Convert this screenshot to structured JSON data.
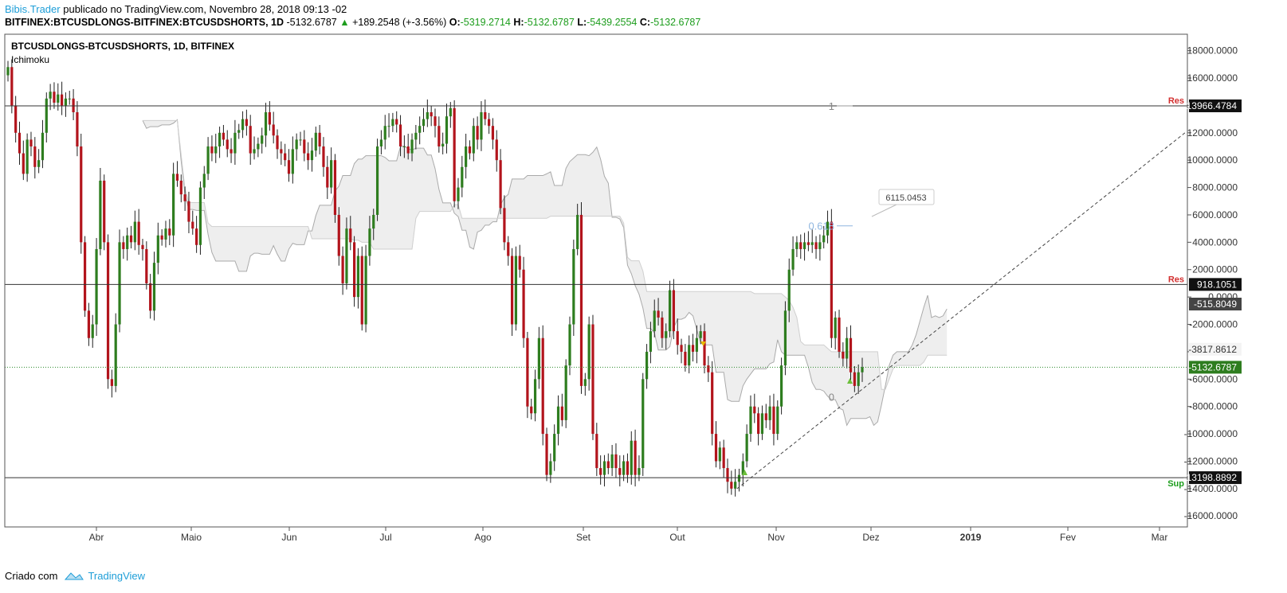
{
  "header": {
    "author": "Bibis.Trader",
    "published_text": "publicado no TradingView.com, Novembro 28, 2018 09:13 -02",
    "symbol": "BITFINEX:BTCUSDLONGS-BITFINEX:BTCUSDSHORTS, 1D",
    "last": "-5132.6787",
    "change": "+189.2548 (+-3.56%)",
    "o_label": "O:",
    "o_value": "-5319.2714",
    "h_label": "H:",
    "h_value": "-5132.6787",
    "l_label": "L:",
    "l_value": "-5439.2554",
    "c_label": "C:",
    "c_value": "-5132.6787"
  },
  "legend": {
    "symbol": "BTCUSDLONGS-BTCUSDSHORTS, 1D, BITFINEX",
    "indicator": "Ichimoku"
  },
  "footer": {
    "created_with": "Criado com",
    "brand": "TradingView"
  },
  "colors": {
    "up": "#2e7d1f",
    "down": "#b2141c",
    "cloud": "#eeeeee",
    "fib": "#8fb6e0",
    "res": "#d32f2f",
    "sup": "#1d9d1d"
  },
  "chart_data": {
    "type": "candlestick",
    "ylim": [
      -16800,
      19200
    ],
    "y_ticks": [
      "18000.0000",
      "16000.0000",
      "14000.0000",
      "12000.0000",
      "10000.0000",
      "8000.0000",
      "6000.0000",
      "4000.0000",
      "2000.0000",
      "0.0000",
      "-2000.0000",
      "-4000.0000",
      "-6000.0000",
      "-8000.0000",
      "-10000.0000",
      "-12000.0000",
      "-14000.0000",
      "-16000.0000"
    ],
    "x_ticks": [
      "Abr",
      "Maio",
      "Jun",
      "Jul",
      "Ago",
      "Set",
      "Out",
      "Nov",
      "Dez",
      "2019",
      "Fev",
      "Mar"
    ],
    "levels": [
      {
        "value": 13966.4784,
        "label": "Res",
        "price_label": "13966.4784"
      },
      {
        "value": 918.1051,
        "label": "Res",
        "price_label": "918.1051"
      },
      {
        "value": -13198.8892,
        "label": "Sup",
        "price_label": "-13198.8892"
      }
    ],
    "price_tags": [
      {
        "value": -515.8049,
        "label": "-515.8049"
      },
      {
        "value": -3817.8612,
        "label": "-3817.8612"
      },
      {
        "value": -5132.6787,
        "label": "-5132.6787"
      }
    ],
    "current_price": -5132.6787,
    "fib_labels": [
      {
        "value": 13966,
        "label": "1"
      },
      {
        "value": 5200,
        "label": "0.618"
      },
      {
        "value": -7300,
        "label": "0"
      }
    ],
    "annotation": {
      "label": "6115.0453"
    },
    "closes": [
      16800,
      14000,
      12000,
      10500,
      9000,
      11500,
      11000,
      9500,
      10000,
      12000,
      14500,
      15000,
      14200,
      14800,
      14000,
      14500,
      14500,
      13500,
      11000,
      4000,
      -1000,
      -3000,
      -2000,
      3500,
      8500,
      4000,
      -6000,
      -6500,
      -2000,
      4000,
      3500,
      4500,
      4000,
      5500,
      3800,
      3500,
      1000,
      -1000,
      2500,
      4500,
      4200,
      5000,
      4500,
      9000,
      8500,
      7500,
      7000,
      5500,
      5000,
      3800,
      8000,
      9000,
      11000,
      10500,
      11000,
      12000,
      11500,
      10800,
      10500,
      12000,
      12200,
      13000,
      12500,
      10500,
      10800,
      11200,
      11800,
      13500,
      12600,
      11800,
      10800,
      10500,
      10000,
      9000,
      10800,
      11500,
      11500,
      10500,
      10000,
      10700,
      12000,
      11000,
      9500,
      8000,
      10000,
      6000,
      3000,
      1000,
      5000,
      4000,
      0,
      3000,
      -2000,
      3000,
      5000,
      6000,
      11000,
      11500,
      12500,
      12500,
      13000,
      12600,
      11000,
      11000,
      10500,
      11500,
      12000,
      12500,
      13000,
      13500,
      13200,
      12500,
      11000,
      11200,
      13200,
      13800,
      7000,
      8000,
      9500,
      11000,
      10500,
      12500,
      11500,
      13500,
      13000,
      12500,
      11500,
      10000,
      6500,
      4000,
      3000,
      -2000,
      3000,
      2000,
      -3000,
      -8000,
      -8500,
      -6000,
      -3000,
      -10000,
      -13000,
      -12000,
      -10000,
      -8000,
      -9000,
      -5000,
      -2000,
      3500,
      6000,
      -6500,
      -6000,
      -2000,
      -10000,
      -12500,
      -13000,
      -12000,
      -12500,
      -11500,
      -12500,
      -13000,
      -12000,
      -13000,
      -10500,
      -13000,
      -12500,
      -6000,
      -4000,
      -2500,
      -1000,
      -1500,
      -3000,
      -2500,
      500,
      -2500,
      -3500,
      -4000,
      -5000,
      -3500,
      -4000,
      -3000,
      -2500,
      -5000,
      -5500,
      -10000,
      -12000,
      -11000,
      -12500,
      -13500,
      -14000,
      -13500,
      -13000,
      -12000,
      -10000,
      -8000,
      -8500,
      -10000,
      -8500,
      -9000,
      -8000,
      -10000,
      -8000,
      -5000,
      -1000,
      2000,
      3500,
      4000,
      3500,
      4000,
      3800,
      4000,
      3500,
      4000,
      4500,
      5500,
      -3000,
      -1500,
      -4000,
      -4500,
      -3000,
      -5500,
      -6500,
      -5500,
      -5132
    ]
  }
}
